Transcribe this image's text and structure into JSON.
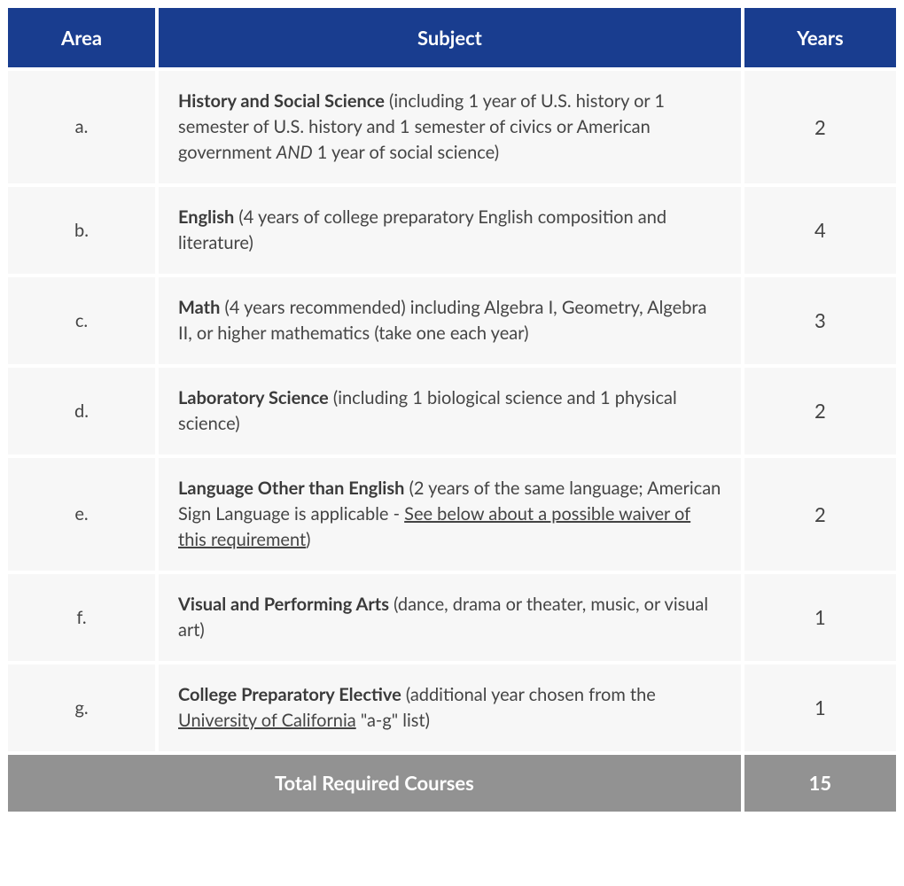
{
  "columns": [
    "Area",
    "Subject",
    "Years"
  ],
  "rows": [
    {
      "area": "a.",
      "subject_bold": "History and Social Science",
      "subject_pre": " (including 1 year of U.S. history or 1 semester of U.S. history and 1 semester of civics or American government ",
      "subject_italic": "AND",
      "subject_post": " 1 year of social science)",
      "years": "2"
    },
    {
      "area": "b.",
      "subject_bold": "English",
      "subject_pre": " (4 years of college preparatory English composition and literature)",
      "years": "4"
    },
    {
      "area": "c.",
      "subject_bold": "Math",
      "subject_pre": " (4 years recommended) including Algebra I, Geometry, Algebra II, or higher mathematics (take one each year)",
      "years": "3"
    },
    {
      "area": "d.",
      "subject_bold": "Laboratory Science",
      "subject_pre": " (including 1 biological science and 1 physical science)",
      "years": "2"
    },
    {
      "area": "e.",
      "subject_bold": "Language Other than English",
      "subject_pre": " (2 years of the same language; American Sign Language is applicable - ",
      "subject_link": "See below about a possible waiver of this requirement",
      "subject_post": ")",
      "years": "2"
    },
    {
      "area": "f.",
      "subject_bold": "Visual and Performing Arts",
      "subject_pre": " (dance, drama or theater, music, or visual art)",
      "years": "1"
    },
    {
      "area": "g.",
      "subject_bold": "College Preparatory Elective",
      "subject_pre": " (additional year chosen from the ",
      "subject_link": "University of California",
      "subject_post": " \"a-g\" list)",
      "years": "1"
    }
  ],
  "total": {
    "label": "Total Required Courses",
    "value": "15"
  },
  "colors": {
    "header_bg": "#193d8f",
    "header_fg": "#ffffff",
    "cell_bg": "#f7f7f7",
    "cell_fg": "#444444",
    "total_bg": "#929292",
    "total_fg": "#ffffff"
  }
}
